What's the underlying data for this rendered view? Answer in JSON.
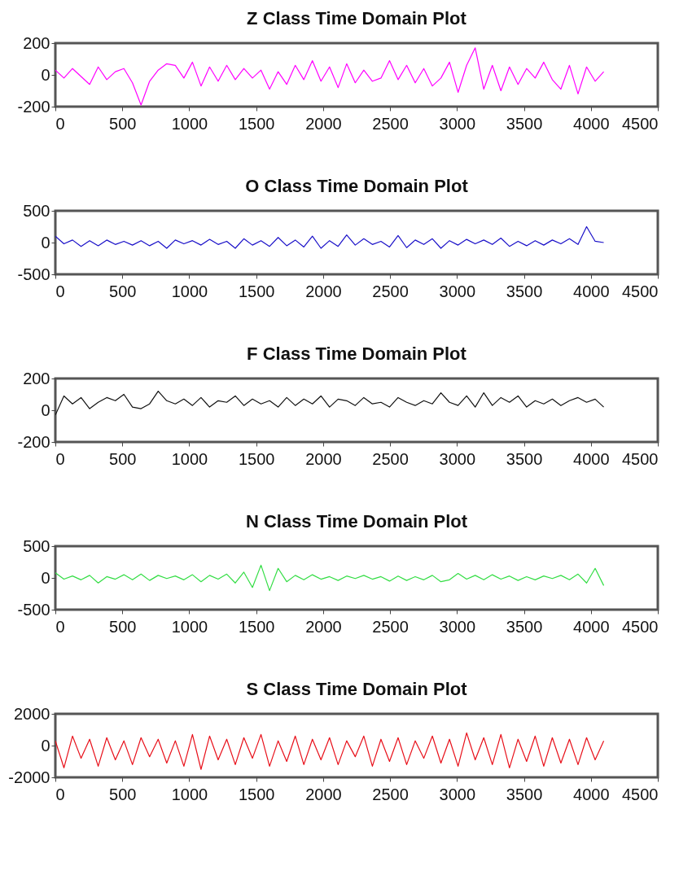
{
  "chart_data": [
    {
      "type": "line",
      "title": "Z Class Time Domain Plot",
      "xlim": [
        0,
        4500
      ],
      "xticks": [
        0,
        500,
        1000,
        1500,
        2000,
        2500,
        3000,
        3500,
        4000,
        4500
      ],
      "ylim": [
        -200,
        200
      ],
      "yticks": [
        -200,
        0,
        200
      ],
      "x": [
        0,
        64,
        128,
        192,
        256,
        320,
        384,
        448,
        512,
        576,
        640,
        704,
        768,
        832,
        896,
        960,
        1024,
        1088,
        1152,
        1216,
        1280,
        1344,
        1408,
        1472,
        1536,
        1600,
        1664,
        1728,
        1792,
        1856,
        1920,
        1984,
        2048,
        2112,
        2176,
        2240,
        2304,
        2368,
        2432,
        2496,
        2560,
        2624,
        2688,
        2752,
        2816,
        2880,
        2944,
        3008,
        3072,
        3136,
        3200,
        3264,
        3328,
        3392,
        3456,
        3520,
        3584,
        3648,
        3712,
        3776,
        3840,
        3904,
        3968,
        4032,
        4096
      ],
      "series": [
        {
          "color": "#ff00ff",
          "values": [
            30,
            -20,
            40,
            -10,
            -60,
            50,
            -30,
            20,
            40,
            -50,
            -190,
            -40,
            30,
            70,
            60,
            -20,
            80,
            -70,
            50,
            -40,
            60,
            -30,
            40,
            -20,
            30,
            -90,
            20,
            -60,
            60,
            -30,
            90,
            -40,
            50,
            -80,
            70,
            -50,
            30,
            -40,
            -20,
            90,
            -30,
            60,
            -50,
            40,
            -70,
            -20,
            80,
            -110,
            60,
            170,
            -90,
            60,
            -100,
            50,
            -60,
            40,
            -20,
            80,
            -30,
            -90,
            60,
            -120,
            50,
            -40,
            20
          ]
        }
      ]
    },
    {
      "type": "line",
      "title": "O Class Time Domain Plot",
      "xlim": [
        0,
        4500
      ],
      "xticks": [
        0,
        500,
        1000,
        1500,
        2000,
        2500,
        3000,
        3500,
        4000,
        4500
      ],
      "ylim": [
        -500,
        500
      ],
      "yticks": [
        -500,
        0,
        500
      ],
      "x": [
        0,
        64,
        128,
        192,
        256,
        320,
        384,
        448,
        512,
        576,
        640,
        704,
        768,
        832,
        896,
        960,
        1024,
        1088,
        1152,
        1216,
        1280,
        1344,
        1408,
        1472,
        1536,
        1600,
        1664,
        1728,
        1792,
        1856,
        1920,
        1984,
        2048,
        2112,
        2176,
        2240,
        2304,
        2368,
        2432,
        2496,
        2560,
        2624,
        2688,
        2752,
        2816,
        2880,
        2944,
        3008,
        3072,
        3136,
        3200,
        3264,
        3328,
        3392,
        3456,
        3520,
        3584,
        3648,
        3712,
        3776,
        3840,
        3904,
        3968,
        4032,
        4096
      ],
      "series": [
        {
          "color": "#1a10c8",
          "values": [
            100,
            -20,
            40,
            -60,
            30,
            -50,
            40,
            -30,
            20,
            -40,
            30,
            -50,
            20,
            -90,
            40,
            -20,
            30,
            -40,
            50,
            -30,
            20,
            -90,
            60,
            -40,
            30,
            -60,
            80,
            -50,
            40,
            -70,
            100,
            -90,
            30,
            -60,
            120,
            -40,
            60,
            -30,
            20,
            -70,
            110,
            -80,
            40,
            -30,
            60,
            -90,
            30,
            -40,
            50,
            -20,
            40,
            -30,
            70,
            -60,
            20,
            -50,
            30,
            -40,
            40,
            -20,
            60,
            -30,
            250,
            20,
            0
          ]
        }
      ]
    },
    {
      "type": "line",
      "title": "F Class Time Domain Plot",
      "xlim": [
        0,
        4500
      ],
      "xticks": [
        0,
        500,
        1000,
        1500,
        2000,
        2500,
        3000,
        3500,
        4000,
        4500
      ],
      "ylim": [
        -200,
        200
      ],
      "yticks": [
        -200,
        0,
        200
      ],
      "x": [
        0,
        64,
        128,
        192,
        256,
        320,
        384,
        448,
        512,
        576,
        640,
        704,
        768,
        832,
        896,
        960,
        1024,
        1088,
        1152,
        1216,
        1280,
        1344,
        1408,
        1472,
        1536,
        1600,
        1664,
        1728,
        1792,
        1856,
        1920,
        1984,
        2048,
        2112,
        2176,
        2240,
        2304,
        2368,
        2432,
        2496,
        2560,
        2624,
        2688,
        2752,
        2816,
        2880,
        2944,
        3008,
        3072,
        3136,
        3200,
        3264,
        3328,
        3392,
        3456,
        3520,
        3584,
        3648,
        3712,
        3776,
        3840,
        3904,
        3968,
        4032,
        4096
      ],
      "series": [
        {
          "color": "#111111",
          "values": [
            -30,
            90,
            40,
            80,
            10,
            50,
            80,
            60,
            100,
            20,
            10,
            40,
            120,
            60,
            40,
            70,
            30,
            80,
            20,
            60,
            50,
            90,
            30,
            70,
            40,
            60,
            20,
            80,
            30,
            70,
            40,
            90,
            20,
            70,
            60,
            30,
            80,
            40,
            50,
            20,
            80,
            50,
            30,
            60,
            40,
            110,
            50,
            30,
            90,
            20,
            110,
            30,
            80,
            50,
            90,
            20,
            60,
            40,
            70,
            30,
            60,
            80,
            50,
            70,
            20
          ]
        }
      ]
    },
    {
      "type": "line",
      "title": "N Class Time Domain Plot",
      "xlim": [
        0,
        4500
      ],
      "xticks": [
        0,
        500,
        1000,
        1500,
        2000,
        2500,
        3000,
        3500,
        4000,
        4500
      ],
      "ylim": [
        -500,
        500
      ],
      "yticks": [
        -500,
        0,
        500
      ],
      "x": [
        0,
        64,
        128,
        192,
        256,
        320,
        384,
        448,
        512,
        576,
        640,
        704,
        768,
        832,
        896,
        960,
        1024,
        1088,
        1152,
        1216,
        1280,
        1344,
        1408,
        1472,
        1536,
        1600,
        1664,
        1728,
        1792,
        1856,
        1920,
        1984,
        2048,
        2112,
        2176,
        2240,
        2304,
        2368,
        2432,
        2496,
        2560,
        2624,
        2688,
        2752,
        2816,
        2880,
        2944,
        3008,
        3072,
        3136,
        3200,
        3264,
        3328,
        3392,
        3456,
        3520,
        3584,
        3648,
        3712,
        3776,
        3840,
        3904,
        3968,
        4032,
        4096
      ],
      "series": [
        {
          "color": "#33dd44",
          "values": [
            80,
            -20,
            30,
            -30,
            40,
            -80,
            20,
            -20,
            50,
            -30,
            60,
            -40,
            40,
            -10,
            30,
            -30,
            50,
            -60,
            40,
            -20,
            60,
            -80,
            90,
            -150,
            200,
            -200,
            150,
            -60,
            40,
            -30,
            50,
            -20,
            20,
            -40,
            30,
            -10,
            40,
            -20,
            20,
            -50,
            30,
            -40,
            20,
            -30,
            40,
            -60,
            -30,
            70,
            -20,
            40,
            -30,
            50,
            -20,
            30,
            -40,
            20,
            -30,
            30,
            -10,
            40,
            -30,
            60,
            -80,
            150,
            -120
          ]
        }
      ]
    },
    {
      "type": "line",
      "title": "S Class Time Domain Plot",
      "xlim": [
        0,
        4500
      ],
      "xticks": [
        0,
        500,
        1000,
        1500,
        2000,
        2500,
        3000,
        3500,
        4000,
        4500
      ],
      "ylim": [
        -2000,
        2000
      ],
      "yticks": [
        -2000,
        0,
        2000
      ],
      "x": [
        0,
        64,
        128,
        192,
        256,
        320,
        384,
        448,
        512,
        576,
        640,
        704,
        768,
        832,
        896,
        960,
        1024,
        1088,
        1152,
        1216,
        1280,
        1344,
        1408,
        1472,
        1536,
        1600,
        1664,
        1728,
        1792,
        1856,
        1920,
        1984,
        2048,
        2112,
        2176,
        2240,
        2304,
        2368,
        2432,
        2496,
        2560,
        2624,
        2688,
        2752,
        2816,
        2880,
        2944,
        3008,
        3072,
        3136,
        3200,
        3264,
        3328,
        3392,
        3456,
        3520,
        3584,
        3648,
        3712,
        3776,
        3840,
        3904,
        3968,
        4032,
        4096
      ],
      "series": [
        {
          "color": "#e8101a",
          "values": [
            300,
            -1400,
            600,
            -800,
            400,
            -1300,
            500,
            -900,
            300,
            -1200,
            500,
            -700,
            400,
            -1100,
            300,
            -1300,
            700,
            -1500,
            600,
            -900,
            400,
            -1200,
            500,
            -800,
            700,
            -1300,
            300,
            -1000,
            600,
            -1200,
            400,
            -900,
            500,
            -1200,
            300,
            -700,
            600,
            -1300,
            400,
            -1000,
            500,
            -1200,
            300,
            -800,
            600,
            -1100,
            400,
            -1300,
            800,
            -900,
            500,
            -1200,
            700,
            -1400,
            400,
            -1000,
            600,
            -1300,
            500,
            -1100,
            400,
            -1200,
            500,
            -900,
            300
          ]
        }
      ]
    }
  ]
}
